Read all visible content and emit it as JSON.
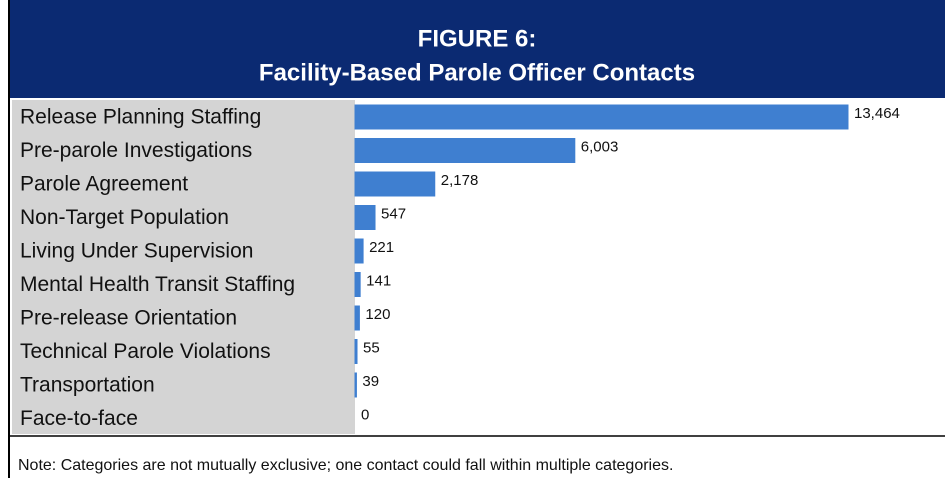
{
  "chart_data": {
    "type": "bar",
    "orientation": "horizontal",
    "title": "FIGURE 6:",
    "subtitle": "Facility-Based Parole Officer Contacts",
    "categories": [
      "Release Planning Staffing",
      "Pre-parole Investigations",
      "Parole Agreement",
      "Non-Target Population",
      "Living Under Supervision",
      "Mental Health Transit Staffing",
      "Pre-release Orientation",
      "Technical Parole Violations",
      "Transportation",
      "Face-to-face"
    ],
    "values": [
      13464,
      6003,
      2178,
      547,
      221,
      141,
      120,
      55,
      39,
      0
    ],
    "value_labels": [
      "13,464",
      "6,003",
      "2,178",
      "547",
      "221",
      "141",
      "120",
      "55",
      "39",
      "0"
    ],
    "color": "#3f7fd0",
    "note": "Note: Categories are not mutually exclusive; one contact could fall within multiple categories."
  }
}
